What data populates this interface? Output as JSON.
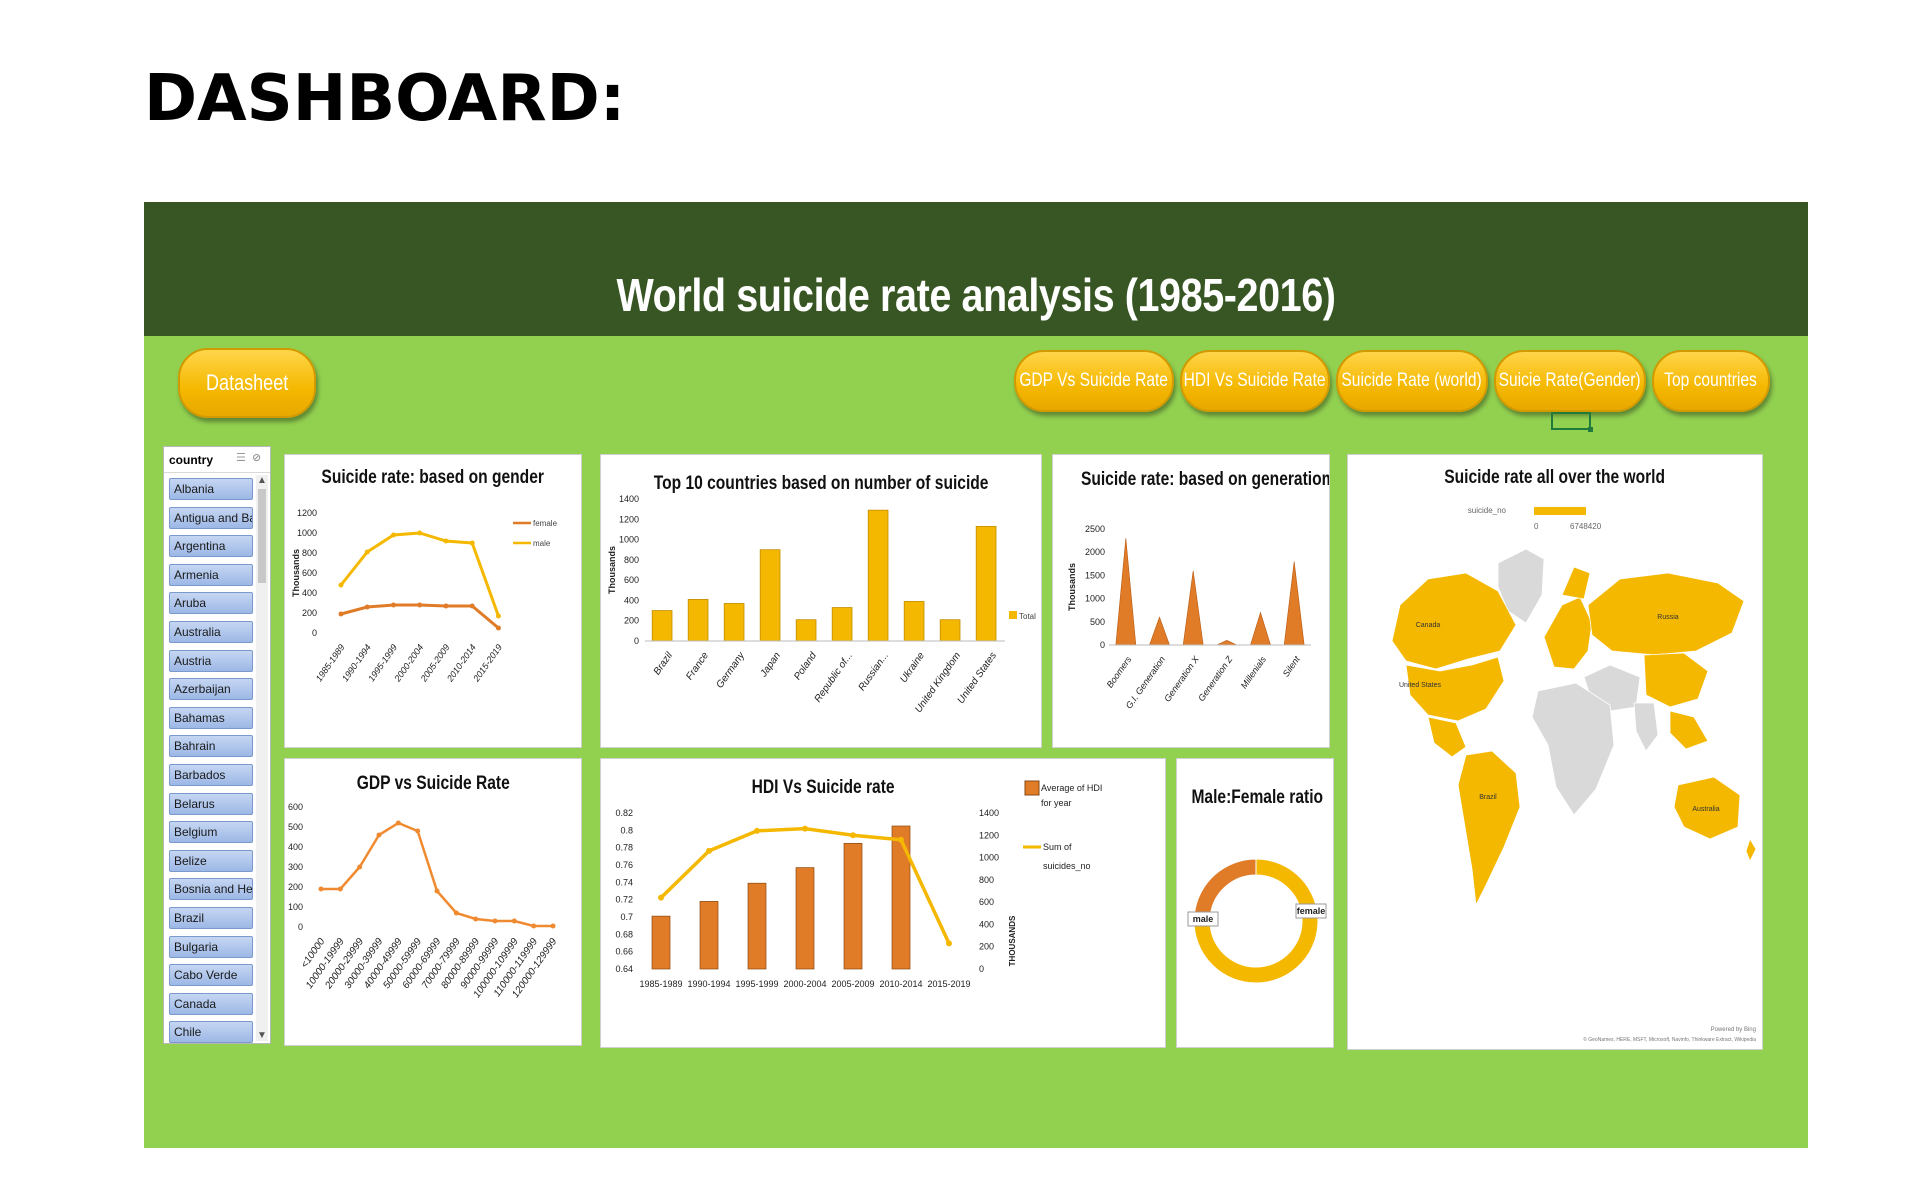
{
  "heading": "DASHBOARD:",
  "dashboard_title": "World suicide rate analysis (1985-2016)",
  "buttons": {
    "datasheet": "Datasheet",
    "nav": [
      "GDP Vs Suicide Rate",
      "HDI Vs Suicide Rate",
      "Suicide Rate (world)",
      "Suicie Rate(Gender)",
      "Top countries"
    ]
  },
  "slicer": {
    "title": "country",
    "items": [
      "Albania",
      "Antigua and Ba...",
      "Argentina",
      "Armenia",
      "Aruba",
      "Australia",
      "Austria",
      "Azerbaijan",
      "Bahamas",
      "Bahrain",
      "Barbados",
      "Belarus",
      "Belgium",
      "Belize",
      "Bosnia and Her...",
      "Brazil",
      "Bulgaria",
      "Cabo Verde",
      "Canada",
      "Chile"
    ]
  },
  "colors": {
    "banner": "#375623",
    "background": "#92d050",
    "orange": "#e07b28",
    "yellow": "#f5b800",
    "slicer_item": "#9db8e6"
  },
  "chart_data": [
    {
      "id": "gender",
      "type": "line",
      "title": "Suicide rate: based on gender",
      "ylabel": "Thousands",
      "ylim": [
        0,
        1200
      ],
      "yticks": [
        "0",
        "200",
        "400",
        "600",
        "800",
        "1000",
        "1200"
      ],
      "categories": [
        "1985-1989",
        "1990-1994",
        "1995-1999",
        "2000-2004",
        "2005-2009",
        "2010-2014",
        "2015-2019"
      ],
      "series": [
        {
          "name": "female",
          "color": "#e07b28",
          "values": [
            190,
            260,
            280,
            280,
            270,
            270,
            50
          ]
        },
        {
          "name": "male",
          "color": "#f5b800",
          "values": [
            480,
            810,
            980,
            1000,
            920,
            900,
            170
          ]
        }
      ],
      "legend": "top-right"
    },
    {
      "id": "top10",
      "type": "bar",
      "title": "Top 10 countries based on number of suicide",
      "ylabel": "Thousands",
      "ylim": [
        0,
        1400
      ],
      "yticks": [
        "0",
        "200",
        "400",
        "600",
        "800",
        "1000",
        "1200",
        "1400"
      ],
      "categories": [
        "Brazil",
        "France",
        "Germany",
        "Japan",
        "Poland",
        "Republic of...",
        "Russian...",
        "Ukraine",
        "United Kingdom",
        "United States"
      ],
      "series": [
        {
          "name": "Total",
          "color": "#f5b800",
          "values": [
            300,
            410,
            370,
            900,
            210,
            330,
            1290,
            390,
            210,
            1130
          ]
        }
      ],
      "legend": "right"
    },
    {
      "id": "generation",
      "type": "bar",
      "title": "Suicide rate: based on generatiom",
      "ylabel": "Thousands",
      "ylim": [
        0,
        2500
      ],
      "yticks": [
        "0",
        "500",
        "1000",
        "1500",
        "2000",
        "2500"
      ],
      "categories": [
        "Boomers",
        "G.I. Generation",
        "Generation X",
        "Generation Z",
        "Millenials",
        "Silent"
      ],
      "series": [
        {
          "name": "",
          "color": "#e07b28",
          "values": [
            2300,
            600,
            1600,
            100,
            700,
            1800
          ]
        }
      ]
    },
    {
      "id": "gdp",
      "type": "line",
      "title": "GDP vs Suicide Rate",
      "ylim": [
        0,
        600
      ],
      "yticks": [
        "0",
        "100",
        "200",
        "300",
        "400",
        "500",
        "600"
      ],
      "categories": [
        "<10000",
        "10000-19999",
        "20000-29999",
        "30000-39999",
        "40000-49999",
        "50000-59999",
        "60000-69999",
        "70000-79999",
        "80000-89999",
        "90000-99999",
        "100000-109999",
        "110000-119999",
        "120000-129999"
      ],
      "series": [
        {
          "name": "",
          "color": "#f08a30",
          "values": [
            190,
            190,
            300,
            460,
            520,
            480,
            180,
            70,
            40,
            30,
            30,
            5,
            5
          ]
        }
      ]
    },
    {
      "id": "hdi",
      "type": "bar",
      "title": "HDI Vs Suicide rate",
      "ylabel_right": "THOUSANDS",
      "ylim": [
        0.64,
        0.82
      ],
      "yticks": [
        "0.64",
        "0.66",
        "0.68",
        "0.7",
        "0.72",
        "0.74",
        "0.76",
        "0.78",
        "0.8",
        "0.82"
      ],
      "ylim_right": [
        0,
        1400
      ],
      "yticks_right": [
        "0",
        "200",
        "400",
        "600",
        "800",
        "1000",
        "1200",
        "1400"
      ],
      "categories": [
        "1985-1989",
        "1990-1994",
        "1995-1999",
        "2000-2004",
        "2005-2009",
        "2010-2014",
        "2015-2019"
      ],
      "series": [
        {
          "name": "Average of HDI for year",
          "type": "bar",
          "color": "#e07b28",
          "values": [
            0.701,
            0.718,
            0.739,
            0.757,
            0.785,
            0.805,
            null
          ]
        },
        {
          "name": "Sum of suicides_no",
          "type": "line",
          "color": "#f5b800",
          "values": [
            640,
            1060,
            1240,
            1260,
            1200,
            1160,
            230
          ]
        }
      ],
      "legend": "right"
    },
    {
      "id": "ratio",
      "type": "pie",
      "title": "Male:Female ratio",
      "labels": [
        "male",
        "female"
      ],
      "values": [
        77,
        23
      ],
      "colors": [
        "#f5b800",
        "#e07b28"
      ]
    },
    {
      "id": "world",
      "type": "map",
      "title": "Suicide rate all over the world",
      "legend_title": "suicide_no",
      "legend_min": "0",
      "legend_max": "6748420",
      "map_labels": [
        "Canada",
        "United States",
        "Russia",
        "Brazil",
        "Australia"
      ],
      "credit_1": "Powered by Bing",
      "credit_2": "© GeoNames, HERE, MSFT, Microsoft, Navinfo, Thinkware Extract, Wikipedia"
    }
  ]
}
